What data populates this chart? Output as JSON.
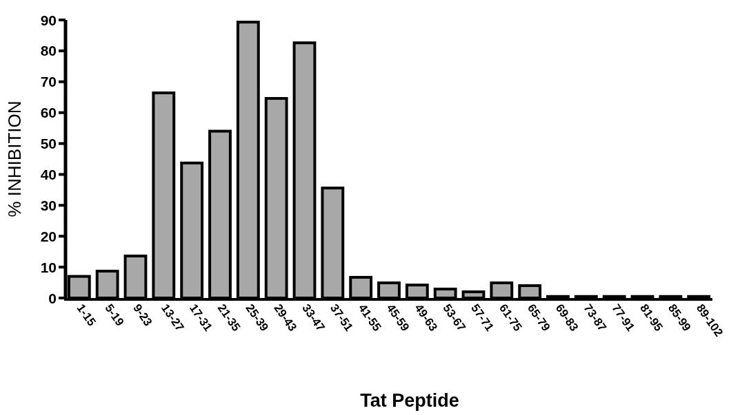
{
  "chart_data": {
    "type": "bar",
    "xlabel": "Tat Peptide",
    "ylabel": "% INHIBITION",
    "categories": [
      "1-15",
      "5-19",
      "9-23",
      "13-27",
      "17-31",
      "21-35",
      "25-39",
      "29-43",
      "33-47",
      "37-51",
      "41-55",
      "45-59",
      "49-63",
      "53-67",
      "57-71",
      "61-75",
      "65-79",
      "69-83",
      "73-87",
      "77-91",
      "81-95",
      "85-99",
      "89-102"
    ],
    "values": [
      7,
      8.7,
      13.6,
      66.4,
      43.7,
      54,
      89.3,
      64.6,
      82.6,
      35.6,
      6.7,
      4.9,
      4.2,
      2.9,
      2,
      4.9,
      4,
      0.5,
      0.5,
      0.5,
      0.5,
      0.5,
      0.5
    ],
    "color": "#a8a8a8",
    "ylim": [
      0,
      90
    ],
    "yticks": [
      0,
      10,
      20,
      30,
      40,
      50,
      60,
      70,
      80,
      90
    ]
  }
}
